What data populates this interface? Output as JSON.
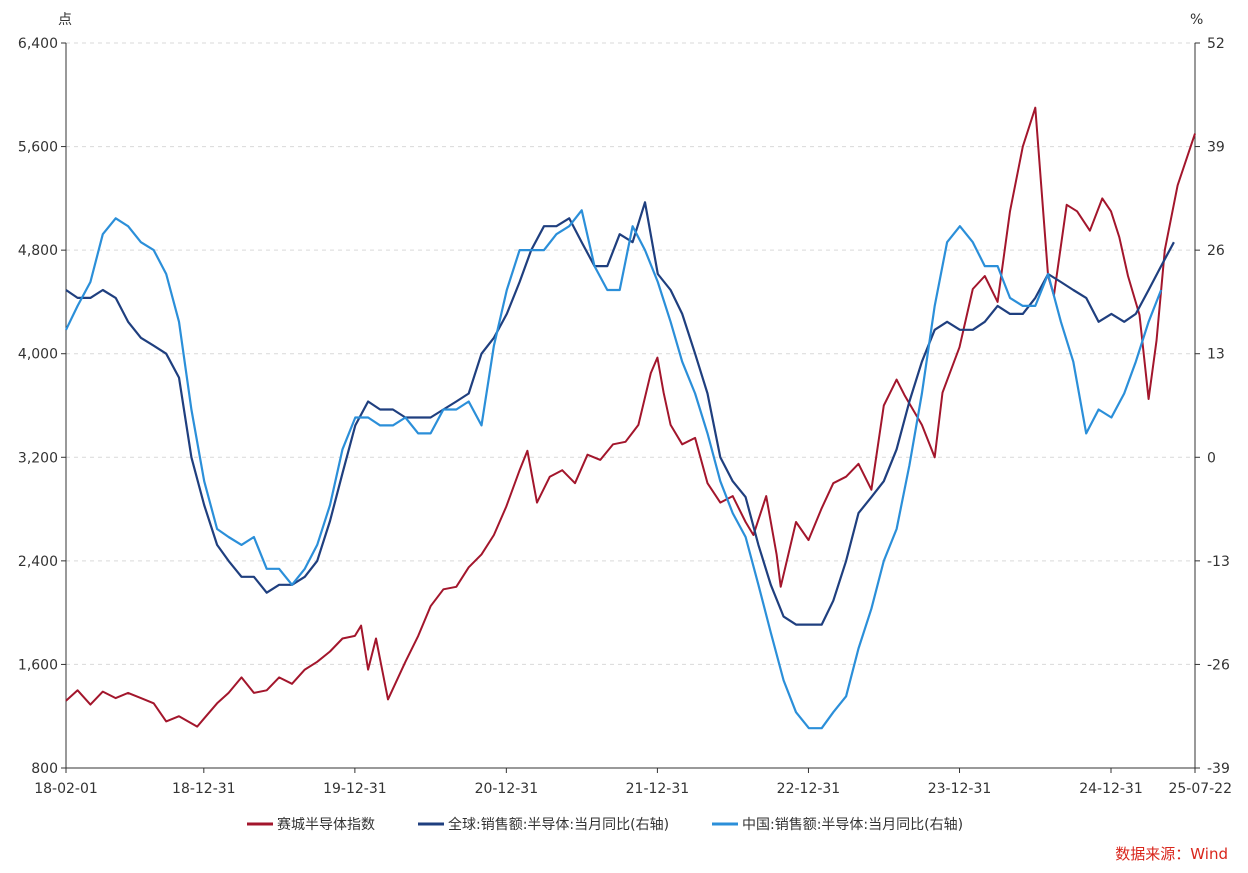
{
  "chart_data": {
    "type": "line",
    "left_axis_unit": "点",
    "right_axis_unit": "%",
    "left_axis": {
      "range": [
        800,
        6400
      ],
      "ticks": [
        "800",
        "1,600",
        "2,400",
        "3,200",
        "4,000",
        "4,800",
        "5,600",
        "6,400"
      ]
    },
    "right_axis": {
      "range": [
        -39,
        52
      ],
      "ticks": [
        "-39",
        "-26",
        "-13",
        "0",
        "13",
        "26",
        "39",
        "52"
      ]
    },
    "x_ticks": [
      "18-02-01",
      "18-12-31",
      "19-12-31",
      "20-12-31",
      "21-12-31",
      "22-12-31",
      "23-12-31",
      "24-12-31",
      "25-07-22"
    ],
    "x_range": [
      "2018-02-01",
      "2025-07-22"
    ],
    "grid": "horizontal dashed",
    "legend_position": "bottom-center",
    "series": [
      {
        "name": "赛城半导体指数",
        "axis": "left",
        "color": "#a3162c",
        "points": [
          [
            "2018-02-01",
            1320
          ],
          [
            "2018-03-01",
            1400
          ],
          [
            "2018-04-01",
            1290
          ],
          [
            "2018-05-01",
            1390
          ],
          [
            "2018-06-01",
            1340
          ],
          [
            "2018-07-01",
            1380
          ],
          [
            "2018-08-01",
            1340
          ],
          [
            "2018-09-01",
            1300
          ],
          [
            "2018-10-01",
            1160
          ],
          [
            "2018-11-01",
            1200
          ],
          [
            "2018-12-15",
            1120
          ],
          [
            "2018-12-31",
            1180
          ],
          [
            "2019-02-01",
            1300
          ],
          [
            "2019-03-01",
            1380
          ],
          [
            "2019-04-01",
            1500
          ],
          [
            "2019-05-01",
            1380
          ],
          [
            "2019-06-01",
            1400
          ],
          [
            "2019-07-01",
            1500
          ],
          [
            "2019-08-01",
            1450
          ],
          [
            "2019-09-01",
            1560
          ],
          [
            "2019-10-01",
            1620
          ],
          [
            "2019-11-01",
            1700
          ],
          [
            "2019-12-01",
            1800
          ],
          [
            "2019-12-31",
            1820
          ],
          [
            "2020-01-15",
            1900
          ],
          [
            "2020-02-01",
            1560
          ],
          [
            "2020-02-20",
            1800
          ],
          [
            "2020-03-20",
            1330
          ],
          [
            "2020-05-01",
            1620
          ],
          [
            "2020-06-01",
            1820
          ],
          [
            "2020-07-01",
            2050
          ],
          [
            "2020-08-01",
            2180
          ],
          [
            "2020-09-01",
            2200
          ],
          [
            "2020-10-01",
            2350
          ],
          [
            "2020-11-01",
            2450
          ],
          [
            "2020-12-01",
            2600
          ],
          [
            "2020-12-31",
            2820
          ],
          [
            "2021-02-01",
            3100
          ],
          [
            "2021-02-20",
            3250
          ],
          [
            "2021-03-15",
            2850
          ],
          [
            "2021-04-15",
            3050
          ],
          [
            "2021-05-15",
            3100
          ],
          [
            "2021-06-15",
            3000
          ],
          [
            "2021-07-15",
            3220
          ],
          [
            "2021-08-15",
            3180
          ],
          [
            "2021-09-15",
            3300
          ],
          [
            "2021-10-15",
            3320
          ],
          [
            "2021-11-15",
            3450
          ],
          [
            "2021-12-15",
            3850
          ],
          [
            "2021-12-31",
            3970
          ],
          [
            "2022-01-15",
            3700
          ],
          [
            "2022-02-01",
            3450
          ],
          [
            "2022-03-01",
            3300
          ],
          [
            "2022-04-01",
            3350
          ],
          [
            "2022-05-01",
            3000
          ],
          [
            "2022-06-01",
            2850
          ],
          [
            "2022-07-01",
            2900
          ],
          [
            "2022-08-01",
            2700
          ],
          [
            "2022-08-20",
            2600
          ],
          [
            "2022-09-20",
            2900
          ],
          [
            "2022-10-15",
            2450
          ],
          [
            "2022-10-25",
            2200
          ],
          [
            "2022-12-01",
            2700
          ],
          [
            "2022-12-31",
            2560
          ],
          [
            "2023-01-31",
            2800
          ],
          [
            "2023-03-01",
            3000
          ],
          [
            "2023-04-01",
            3050
          ],
          [
            "2023-05-01",
            3150
          ],
          [
            "2023-06-01",
            2950
          ],
          [
            "2023-07-01",
            3600
          ],
          [
            "2023-08-01",
            3800
          ],
          [
            "2023-08-20",
            3680
          ],
          [
            "2023-10-01",
            3450
          ],
          [
            "2023-11-01",
            3200
          ],
          [
            "2023-11-20",
            3700
          ],
          [
            "2023-12-31",
            4050
          ],
          [
            "2024-02-01",
            4500
          ],
          [
            "2024-03-01",
            4600
          ],
          [
            "2024-04-01",
            4400
          ],
          [
            "2024-05-01",
            5100
          ],
          [
            "2024-06-01",
            5600
          ],
          [
            "2024-07-01",
            5900
          ],
          [
            "2024-08-01",
            4600
          ],
          [
            "2024-08-15",
            4450
          ],
          [
            "2024-09-15",
            5150
          ],
          [
            "2024-10-10",
            5100
          ],
          [
            "2024-11-10",
            4950
          ],
          [
            "2024-12-10",
            5200
          ],
          [
            "2024-12-31",
            5100
          ],
          [
            "2025-01-20",
            4900
          ],
          [
            "2025-02-10",
            4600
          ],
          [
            "2025-03-10",
            4300
          ],
          [
            "2025-04-01",
            3650
          ],
          [
            "2025-04-20",
            4100
          ],
          [
            "2025-05-10",
            4800
          ],
          [
            "2025-06-10",
            5300
          ],
          [
            "2025-07-22",
            5700
          ]
        ]
      },
      {
        "name": "全球:销售额:半导体:当月同比(右轴)",
        "axis": "right",
        "color": "#1f3f7f",
        "points": [
          [
            "2018-02-01",
            21
          ],
          [
            "2018-03-01",
            20
          ],
          [
            "2018-04-01",
            20
          ],
          [
            "2018-05-01",
            21
          ],
          [
            "2018-06-01",
            20
          ],
          [
            "2018-07-01",
            17
          ],
          [
            "2018-08-01",
            15
          ],
          [
            "2018-09-01",
            14
          ],
          [
            "2018-10-01",
            13
          ],
          [
            "2018-11-01",
            10
          ],
          [
            "2018-12-01",
            0
          ],
          [
            "2019-01-01",
            -6
          ],
          [
            "2019-02-01",
            -11
          ],
          [
            "2019-03-01",
            -13
          ],
          [
            "2019-04-01",
            -15
          ],
          [
            "2019-05-01",
            -15
          ],
          [
            "2019-06-01",
            -17
          ],
          [
            "2019-07-01",
            -16
          ],
          [
            "2019-08-01",
            -16
          ],
          [
            "2019-09-01",
            -15
          ],
          [
            "2019-10-01",
            -13
          ],
          [
            "2019-11-01",
            -8
          ],
          [
            "2019-12-01",
            -2
          ],
          [
            "2020-01-01",
            4
          ],
          [
            "2020-02-01",
            7
          ],
          [
            "2020-03-01",
            6
          ],
          [
            "2020-04-01",
            6
          ],
          [
            "2020-05-01",
            5
          ],
          [
            "2020-06-01",
            5
          ],
          [
            "2020-07-01",
            5
          ],
          [
            "2020-08-01",
            6
          ],
          [
            "2020-09-01",
            7
          ],
          [
            "2020-10-01",
            8
          ],
          [
            "2020-11-01",
            13
          ],
          [
            "2020-12-01",
            15
          ],
          [
            "2021-01-01",
            18
          ],
          [
            "2021-02-01",
            22
          ],
          [
            "2021-03-01",
            26
          ],
          [
            "2021-04-01",
            29
          ],
          [
            "2021-05-01",
            29
          ],
          [
            "2021-06-01",
            30
          ],
          [
            "2021-07-01",
            27
          ],
          [
            "2021-08-01",
            24
          ],
          [
            "2021-09-01",
            24
          ],
          [
            "2021-10-01",
            28
          ],
          [
            "2021-11-01",
            27
          ],
          [
            "2021-12-01",
            32
          ],
          [
            "2022-01-01",
            23
          ],
          [
            "2022-02-01",
            21
          ],
          [
            "2022-03-01",
            18
          ],
          [
            "2022-04-01",
            13
          ],
          [
            "2022-05-01",
            8
          ],
          [
            "2022-06-01",
            0
          ],
          [
            "2022-07-01",
            -3
          ],
          [
            "2022-08-01",
            -5
          ],
          [
            "2022-09-01",
            -11
          ],
          [
            "2022-10-01",
            -16
          ],
          [
            "2022-11-01",
            -20
          ],
          [
            "2022-12-01",
            -21
          ],
          [
            "2023-01-01",
            -21
          ],
          [
            "2023-02-01",
            -21
          ],
          [
            "2023-03-01",
            -18
          ],
          [
            "2023-04-01",
            -13
          ],
          [
            "2023-05-01",
            -7
          ],
          [
            "2023-06-01",
            -5
          ],
          [
            "2023-07-01",
            -3
          ],
          [
            "2023-08-01",
            1
          ],
          [
            "2023-09-01",
            7
          ],
          [
            "2023-10-01",
            12
          ],
          [
            "2023-11-01",
            16
          ],
          [
            "2023-12-01",
            17
          ],
          [
            "2024-01-01",
            16
          ],
          [
            "2024-02-01",
            16
          ],
          [
            "2024-03-01",
            17
          ],
          [
            "2024-04-01",
            19
          ],
          [
            "2024-05-01",
            18
          ],
          [
            "2024-06-01",
            18
          ],
          [
            "2024-07-01",
            20
          ],
          [
            "2024-08-01",
            23
          ],
          [
            "2024-09-01",
            22
          ],
          [
            "2024-10-01",
            21
          ],
          [
            "2024-11-01",
            20
          ],
          [
            "2024-12-01",
            17
          ],
          [
            "2025-01-01",
            18
          ],
          [
            "2025-02-01",
            17
          ],
          [
            "2025-03-01",
            18
          ],
          [
            "2025-04-01",
            21
          ],
          [
            "2025-05-01",
            24
          ],
          [
            "2025-06-01",
            27
          ]
        ]
      },
      {
        "name": "中国:销售额:半导体:当月同比(右轴)",
        "axis": "right",
        "color": "#2b8fd9",
        "points": [
          [
            "2018-02-01",
            16
          ],
          [
            "2018-03-01",
            19
          ],
          [
            "2018-04-01",
            22
          ],
          [
            "2018-05-01",
            28
          ],
          [
            "2018-06-01",
            30
          ],
          [
            "2018-07-01",
            29
          ],
          [
            "2018-08-01",
            27
          ],
          [
            "2018-09-01",
            26
          ],
          [
            "2018-10-01",
            23
          ],
          [
            "2018-11-01",
            17
          ],
          [
            "2018-12-01",
            6
          ],
          [
            "2019-01-01",
            -3
          ],
          [
            "2019-02-01",
            -9
          ],
          [
            "2019-03-01",
            -10
          ],
          [
            "2019-04-01",
            -11
          ],
          [
            "2019-05-01",
            -10
          ],
          [
            "2019-06-01",
            -14
          ],
          [
            "2019-07-01",
            -14
          ],
          [
            "2019-08-01",
            -16
          ],
          [
            "2019-09-01",
            -14
          ],
          [
            "2019-10-01",
            -11
          ],
          [
            "2019-11-01",
            -6
          ],
          [
            "2019-12-01",
            1
          ],
          [
            "2020-01-01",
            5
          ],
          [
            "2020-02-01",
            5
          ],
          [
            "2020-03-01",
            4
          ],
          [
            "2020-04-01",
            4
          ],
          [
            "2020-05-01",
            5
          ],
          [
            "2020-06-01",
            3
          ],
          [
            "2020-07-01",
            3
          ],
          [
            "2020-08-01",
            6
          ],
          [
            "2020-09-01",
            6
          ],
          [
            "2020-10-01",
            7
          ],
          [
            "2020-11-01",
            4
          ],
          [
            "2020-12-01",
            14
          ],
          [
            "2021-01-01",
            21
          ],
          [
            "2021-02-01",
            26
          ],
          [
            "2021-03-01",
            26
          ],
          [
            "2021-04-01",
            26
          ],
          [
            "2021-05-01",
            28
          ],
          [
            "2021-06-01",
            29
          ],
          [
            "2021-07-01",
            31
          ],
          [
            "2021-08-01",
            24
          ],
          [
            "2021-09-01",
            21
          ],
          [
            "2021-10-01",
            21
          ],
          [
            "2021-11-01",
            29
          ],
          [
            "2021-12-01",
            26
          ],
          [
            "2022-01-01",
            22
          ],
          [
            "2022-02-01",
            17
          ],
          [
            "2022-03-01",
            12
          ],
          [
            "2022-04-01",
            8
          ],
          [
            "2022-05-01",
            3
          ],
          [
            "2022-06-01",
            -3
          ],
          [
            "2022-07-01",
            -7
          ],
          [
            "2022-08-01",
            -10
          ],
          [
            "2022-09-01",
            -16
          ],
          [
            "2022-10-01",
            -22
          ],
          [
            "2022-11-01",
            -28
          ],
          [
            "2022-12-01",
            -32
          ],
          [
            "2023-01-01",
            -34
          ],
          [
            "2023-02-01",
            -34
          ],
          [
            "2023-03-01",
            -32
          ],
          [
            "2023-04-01",
            -30
          ],
          [
            "2023-05-01",
            -24
          ],
          [
            "2023-06-01",
            -19
          ],
          [
            "2023-07-01",
            -13
          ],
          [
            "2023-08-01",
            -9
          ],
          [
            "2023-09-01",
            -1
          ],
          [
            "2023-10-01",
            8
          ],
          [
            "2023-11-01",
            19
          ],
          [
            "2023-12-01",
            27
          ],
          [
            "2024-01-01",
            29
          ],
          [
            "2024-02-01",
            27
          ],
          [
            "2024-03-01",
            24
          ],
          [
            "2024-04-01",
            24
          ],
          [
            "2024-05-01",
            20
          ],
          [
            "2024-06-01",
            19
          ],
          [
            "2024-07-01",
            19
          ],
          [
            "2024-08-01",
            23
          ],
          [
            "2024-09-01",
            17
          ],
          [
            "2024-10-01",
            12
          ],
          [
            "2024-11-01",
            3
          ],
          [
            "2024-12-01",
            6
          ],
          [
            "2025-01-01",
            5
          ],
          [
            "2025-02-01",
            8
          ],
          [
            "2025-03-01",
            12
          ],
          [
            "2025-04-01",
            17
          ],
          [
            "2025-05-01",
            21
          ]
        ]
      }
    ]
  },
  "source_text": "数据来源：Wind"
}
